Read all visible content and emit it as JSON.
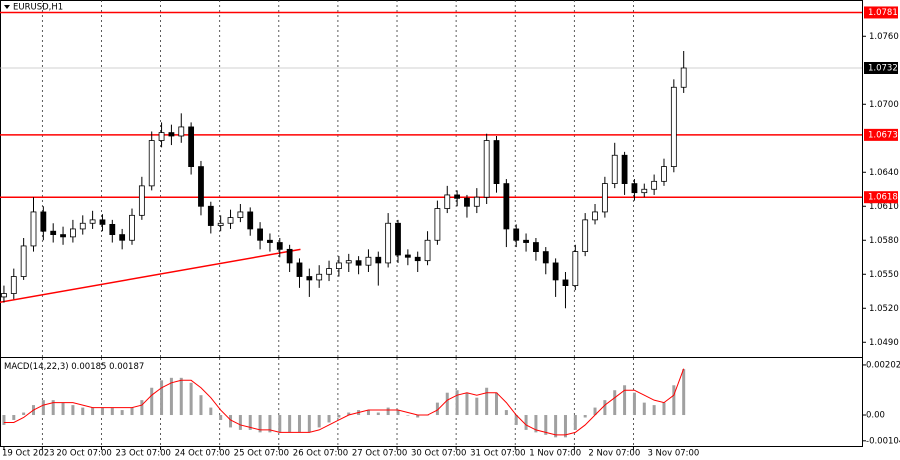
{
  "chart_data": {
    "type": "candlestick",
    "title": "EURUSD,H1",
    "open": [
      1.053,
      1.0533,
      1.0548,
      1.0575,
      1.0605,
      1.0588,
      1.0585,
      1.0583,
      1.059,
      1.0595,
      1.0598,
      1.0594,
      1.0585,
      1.058,
      1.0602,
      1.0628,
      1.0668,
      1.0675,
      1.0672,
      1.068,
      1.0645,
      1.061,
      1.0593,
      1.0595,
      1.06,
      1.0605,
      1.059,
      1.058,
      1.0578,
      1.0572,
      1.056,
      1.0548,
      1.0545,
      1.055,
      1.0555,
      1.056,
      1.0562,
      1.0558,
      1.0565,
      1.056,
      1.0595,
      1.0567,
      1.0565,
      1.0562,
      1.058,
      1.0608,
      1.062,
      1.0617,
      1.061,
      1.0618,
      1.0668,
      1.063,
      1.059,
      1.058,
      1.0578,
      1.057,
      1.056,
      1.0545,
      1.054,
      1.057,
      1.0598,
      1.0605,
      1.063,
      1.0655,
      1.063,
      1.0622,
      1.0625,
      1.0632,
      1.0645,
      1.0715
    ],
    "high": [
      1.054,
      1.0555,
      1.0582,
      1.0618,
      1.061,
      1.0595,
      1.0592,
      1.0598,
      1.0602,
      1.0606,
      1.0603,
      1.0598,
      1.059,
      1.0608,
      1.0636,
      1.0676,
      1.0684,
      1.0682,
      1.0692,
      1.0684,
      1.065,
      1.0614,
      1.0602,
      1.0607,
      1.0612,
      1.0609,
      1.0596,
      1.0586,
      1.0582,
      1.0576,
      1.0564,
      1.0555,
      1.0558,
      1.0562,
      1.0566,
      1.0568,
      1.0566,
      1.0572,
      1.057,
      1.0604,
      1.0598,
      1.0572,
      1.057,
      1.0588,
      1.0615,
      1.0628,
      1.0624,
      1.062,
      1.0626,
      1.0674,
      1.0672,
      1.0634,
      1.0594,
      1.0586,
      1.0582,
      1.0574,
      1.0564,
      1.0552,
      1.0576,
      1.0604,
      1.0612,
      1.0636,
      1.0666,
      1.0658,
      1.0634,
      1.063,
      1.0638,
      1.0652,
      1.0722,
      1.0747
    ],
    "low": [
      1.0525,
      1.0528,
      1.0545,
      1.057,
      1.058,
      1.0578,
      1.0576,
      1.0578,
      1.0585,
      1.059,
      1.0588,
      1.0578,
      1.0572,
      1.0576,
      1.0598,
      1.0624,
      1.0662,
      1.0664,
      1.0666,
      1.0638,
      1.0602,
      1.0586,
      1.0588,
      1.059,
      1.0596,
      1.0584,
      1.0572,
      1.057,
      1.0565,
      1.0552,
      1.0538,
      1.053,
      1.0538,
      1.0544,
      1.0548,
      1.0552,
      1.055,
      1.0552,
      1.054,
      1.0556,
      1.056,
      1.0558,
      1.0552,
      1.0558,
      1.0576,
      1.0604,
      1.061,
      1.06,
      1.0604,
      1.0612,
      1.0622,
      1.0574,
      1.0574,
      1.057,
      1.0562,
      1.055,
      1.053,
      1.052,
      1.0536,
      1.0566,
      1.0594,
      1.06,
      1.0626,
      1.062,
      1.0615,
      1.0618,
      1.062,
      1.0628,
      1.064,
      1.071
    ],
    "close": [
      1.0533,
      1.0548,
      1.0575,
      1.0605,
      1.0588,
      1.0585,
      1.0583,
      1.059,
      1.0595,
      1.0598,
      1.0594,
      1.0585,
      1.058,
      1.0602,
      1.0628,
      1.0668,
      1.0675,
      1.0672,
      1.068,
      1.0645,
      1.061,
      1.0593,
      1.0595,
      1.06,
      1.0605,
      1.059,
      1.058,
      1.0578,
      1.0572,
      1.056,
      1.0548,
      1.0545,
      1.055,
      1.0555,
      1.056,
      1.0562,
      1.0558,
      1.0565,
      1.056,
      1.0595,
      1.0567,
      1.0565,
      1.0562,
      1.058,
      1.0608,
      1.062,
      1.0617,
      1.061,
      1.0618,
      1.0668,
      1.063,
      1.059,
      1.058,
      1.0578,
      1.057,
      1.056,
      1.0545,
      1.054,
      1.057,
      1.0598,
      1.0605,
      1.063,
      1.0655,
      1.063,
      1.0622,
      1.0625,
      1.0632,
      1.0645,
      1.0715,
      1.0732
    ],
    "xlim": [
      -0.4,
      87.1
    ],
    "xticks": [
      {
        "value": 0,
        "label": "19 Oct 2023"
      },
      {
        "value": 3.9,
        "label": "20 Oct 07:00"
      },
      {
        "value": 9.9,
        "label": "23 Oct 07:00"
      },
      {
        "value": 15.9,
        "label": "24 Oct 07:00"
      },
      {
        "value": 21.9,
        "label": "25 Oct 07:00"
      },
      {
        "value": 27.9,
        "label": "26 Oct 07:00"
      },
      {
        "value": 33.9,
        "label": "27 Oct 07:00"
      },
      {
        "value": 39.9,
        "label": "30 Oct 07:00"
      },
      {
        "value": 45.9,
        "label": "31 Oct 07:00"
      },
      {
        "value": 51.9,
        "label": "1 Nov 07:00"
      },
      {
        "value": 57.9,
        "label": "2 Nov 07:00"
      },
      {
        "value": 63.9,
        "label": "3 Nov 07:00"
      }
    ],
    "ylim": [
      1.0477,
      1.0792
    ],
    "yticks": [
      {
        "value": 1.076,
        "label": "1.0760"
      },
      {
        "value": 1.07,
        "label": "1.0700"
      },
      {
        "value": 1.064,
        "label": "1.0640"
      },
      {
        "value": 1.061,
        "label": "1.0610"
      },
      {
        "value": 1.058,
        "label": "1.0580"
      },
      {
        "value": 1.055,
        "label": "1.0550"
      },
      {
        "value": 1.052,
        "label": "1.0520"
      },
      {
        "value": 1.049,
        "label": "1.0490"
      }
    ],
    "levels": [
      1.0781,
      1.0673,
      1.0618
    ],
    "level_color": "#ff0000",
    "current_price": 1.0732,
    "trendline": {
      "x": [
        -0.6,
        30.1
      ],
      "y": [
        1.0525,
        1.0572
      ],
      "color": "#ff0000"
    },
    "macd": {
      "title": "MACD(14,22,3)",
      "main_value": 0.00185,
      "signal_value": 0.00187,
      "values": [
        -0.0004,
        -0.0002,
        0.0001,
        0.0004,
        0.0006,
        0.0006,
        0.0005,
        0.0004,
        0.0003,
        0.0003,
        0.0003,
        0.0003,
        0.0002,
        0.0003,
        0.0006,
        0.0011,
        0.0014,
        0.0015,
        0.0015,
        0.0013,
        0.0008,
        0.0003,
        -0.0002,
        -0.0005,
        -0.0006,
        -0.0006,
        -0.0007,
        -0.0007,
        -0.0007,
        -0.0007,
        -0.0007,
        -0.0007,
        -0.0005,
        -0.0003,
        -0.0001,
        0.0001,
        0.0002,
        0.0002,
        0.0001,
        0.0003,
        0.0002,
        0,
        -0.0001,
        0,
        0.0005,
        0.0009,
        0.001,
        0.0009,
        0.0007,
        0.0011,
        0.0009,
        0.0002,
        -0.0004,
        -0.0006,
        -0.0007,
        -0.0008,
        -0.0009,
        -0.0009,
        -0.0006,
        -0.0001,
        0.0003,
        0.0006,
        0.001,
        0.0012,
        0.0009,
        0.0005,
        0.0004,
        0.0005,
        0.0012,
        0.00185
      ],
      "signal": [
        -0.0003,
        -0.0003,
        -0.0001,
        0.0002,
        0.0004,
        0.0005,
        0.0005,
        0.0005,
        0.0004,
        0.0003,
        0.0003,
        0.0003,
        0.0003,
        0.0003,
        0.0004,
        0.0008,
        0.0011,
        0.0013,
        0.0014,
        0.0014,
        0.0011,
        0.0007,
        0.0002,
        -0.0002,
        -0.0004,
        -0.0005,
        -0.0006,
        -0.0006,
        -0.0007,
        -0.0007,
        -0.0007,
        -0.0007,
        -0.0006,
        -0.0004,
        -0.0002,
        0,
        0.0001,
        0.0002,
        0.0002,
        0.0002,
        0.0002,
        0.0001,
        0,
        0,
        0.0002,
        0.0006,
        0.0008,
        0.0009,
        0.0008,
        0.0009,
        0.0009,
        0.0005,
        0,
        -0.0004,
        -0.0006,
        -0.0007,
        -0.0008,
        -0.0008,
        -0.0007,
        -0.0004,
        0,
        0.0004,
        0.0007,
        0.001,
        0.001,
        0.0008,
        0.0006,
        0.0005,
        0.0008,
        0.00187
      ],
      "bar_color": "#a0a0a0",
      "signal_color": "#ff0000",
      "ylim": [
        -0.00129,
        0.0023
      ],
      "yticks": [
        0.00202,
        {
          "value": 0,
          "label": "0.00"
        },
        -0.00104
      ]
    }
  }
}
